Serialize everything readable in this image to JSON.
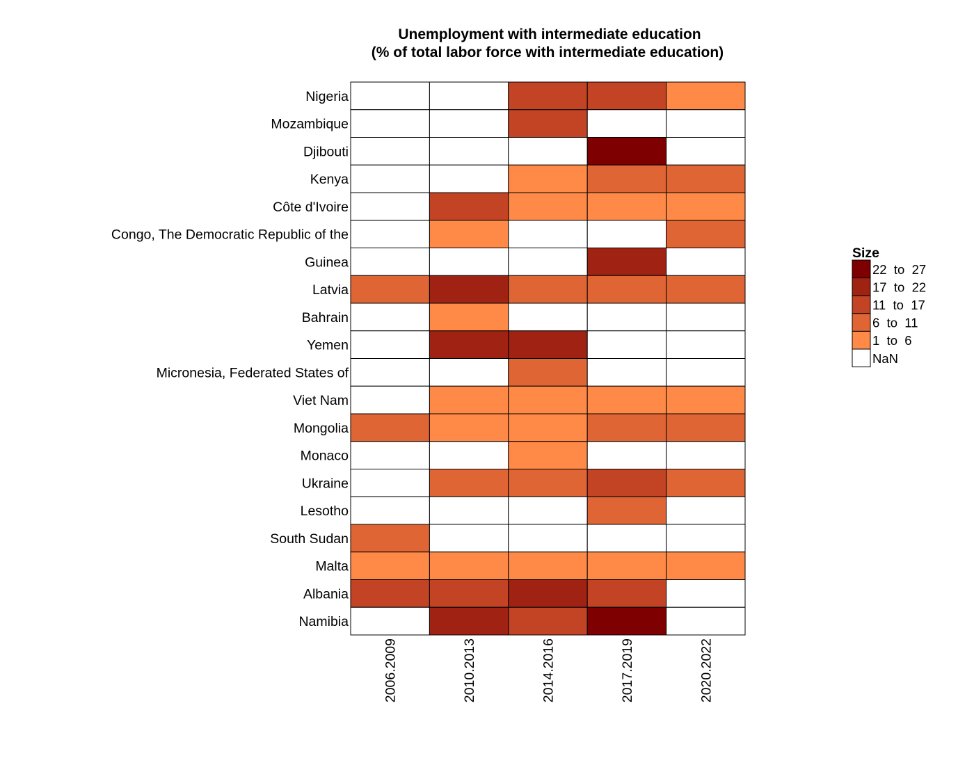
{
  "chart_data": {
    "type": "heatmap",
    "title_lines": [
      "Unemployment with intermediate education",
      "(% of total labor force with intermediate education)"
    ],
    "columns": [
      "2006.2009",
      "2010.2013",
      "2014.2016",
      "2017.2019",
      "2020.2022"
    ],
    "rows": [
      "Nigeria",
      "Mozambique",
      "Djibouti",
      "Kenya",
      "Côte d'Ivoire",
      "Congo, The Democratic Republic of the",
      "Guinea",
      "Latvia",
      "Bahrain",
      "Yemen",
      "Micronesia, Federated States of",
      "Viet Nam",
      "Mongolia",
      "Monaco",
      "Ukraine",
      "Lesotho",
      "South Sudan",
      "Malta",
      "Albania",
      "Namibia"
    ],
    "bins": [
      {
        "label": "22  to  27",
        "color": "#7f0000"
      },
      {
        "label": "17  to  22",
        "color": "#a02212"
      },
      {
        "label": "11  to  17",
        "color": "#c24424"
      },
      {
        "label": "6  to  11",
        "color": "#e06535"
      },
      {
        "label": "1  to  6",
        "color": "#ff8a47"
      },
      {
        "label": "NaN",
        "color": "#ffffff"
      }
    ],
    "cells": [
      [
        null,
        null,
        2,
        2,
        4
      ],
      [
        null,
        null,
        2,
        null,
        null
      ],
      [
        null,
        null,
        null,
        0,
        null
      ],
      [
        null,
        null,
        4,
        3,
        3
      ],
      [
        null,
        2,
        4,
        4,
        4
      ],
      [
        null,
        4,
        null,
        null,
        3
      ],
      [
        null,
        null,
        null,
        1,
        null
      ],
      [
        3,
        1,
        3,
        3,
        3
      ],
      [
        null,
        4,
        null,
        null,
        null
      ],
      [
        null,
        1,
        1,
        null,
        null
      ],
      [
        null,
        null,
        3,
        null,
        null
      ],
      [
        null,
        4,
        4,
        4,
        4
      ],
      [
        3,
        4,
        4,
        3,
        3
      ],
      [
        null,
        null,
        4,
        null,
        null
      ],
      [
        null,
        3,
        3,
        2,
        3
      ],
      [
        null,
        null,
        null,
        3,
        null
      ],
      [
        3,
        null,
        null,
        null,
        null
      ],
      [
        4,
        4,
        4,
        4,
        4
      ],
      [
        2,
        2,
        1,
        2,
        null
      ],
      [
        null,
        1,
        2,
        0,
        null
      ]
    ],
    "legend": {
      "title": "Size",
      "position": "right"
    },
    "grid": false
  }
}
